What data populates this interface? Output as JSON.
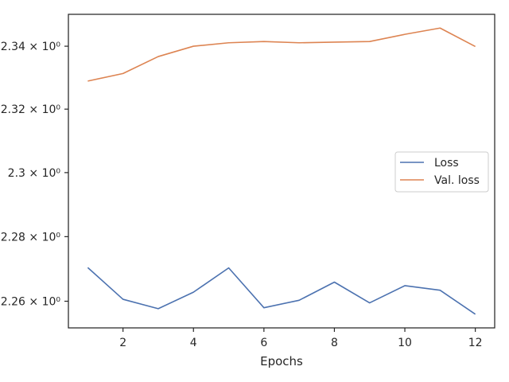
{
  "chart_data": {
    "type": "line",
    "title": "",
    "xlabel": "Epochs",
    "ylabel": "",
    "yscale": "log",
    "grid": false,
    "legend_position": "center-right",
    "xlim": [
      0.45,
      12.55
    ],
    "ylim": [
      2.2518,
      2.3502
    ],
    "x_ticks": [
      2,
      4,
      6,
      8,
      10,
      12
    ],
    "x_tick_labels": [
      "2",
      "4",
      "6",
      "8",
      "10",
      "12"
    ],
    "y_ticks": [
      2.26,
      2.28,
      2.3,
      2.32,
      2.34
    ],
    "y_tick_labels": [
      "2.26 × 10⁰",
      "2.28 × 10⁰",
      "2.3 × 10⁰",
      "2.32 × 10⁰",
      "2.34 × 10⁰"
    ],
    "x": [
      1,
      2,
      3,
      4,
      5,
      6,
      7,
      8,
      9,
      10,
      11,
      12
    ],
    "series": [
      {
        "name": "Loss",
        "color": "#4c72b0",
        "values": [
          2.2704,
          2.2606,
          2.2577,
          2.2628,
          2.2703,
          2.258,
          2.2603,
          2.2659,
          2.2595,
          2.2648,
          2.2634,
          2.256
        ]
      },
      {
        "name": "Val. loss",
        "color": "#dd8452",
        "values": [
          2.3289,
          2.3313,
          2.3367,
          2.34,
          2.3411,
          2.3415,
          2.3411,
          2.3413,
          2.3415,
          2.3438,
          2.3458,
          2.3399
        ]
      }
    ]
  }
}
